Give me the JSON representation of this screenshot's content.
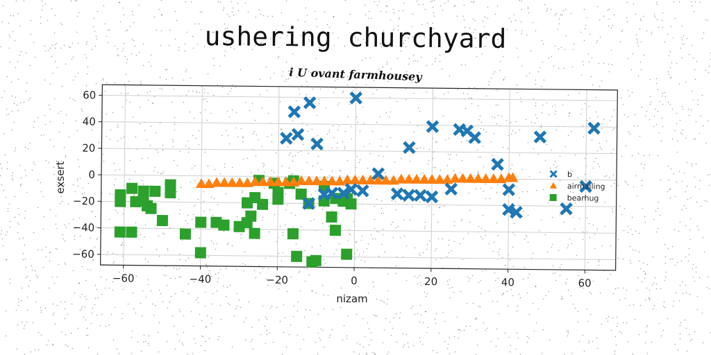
{
  "title": "ushering churchyard",
  "chart_data": {
    "type": "scatter",
    "title": "i U ovant farmhousey",
    "xlabel": "nizam",
    "ylabel": "exsert",
    "xlim": [
      -66,
      68
    ],
    "ylim": [
      -68,
      68
    ],
    "xticks": [
      -60,
      -40,
      -20,
      0,
      20,
      40,
      60
    ],
    "yticks": [
      -60,
      -40,
      -20,
      0,
      20,
      40,
      60
    ],
    "grid": true,
    "legend": "center-right",
    "series": [
      {
        "name": "b",
        "marker": "x",
        "color": "#1f77b4",
        "points": [
          [
            -16,
            49
          ],
          [
            -12,
            56
          ],
          [
            -18,
            29
          ],
          [
            -15,
            32
          ],
          [
            -10,
            25
          ],
          [
            0,
            60
          ],
          [
            -6,
            -12
          ],
          [
            -3,
            -12
          ],
          [
            -8,
            -13
          ],
          [
            -12,
            -20
          ],
          [
            -1,
            -9
          ],
          [
            2,
            -10
          ],
          [
            6,
            3
          ],
          [
            11,
            -12
          ],
          [
            14,
            -13
          ],
          [
            17,
            -13
          ],
          [
            20,
            -14
          ],
          [
            20,
            39
          ],
          [
            27,
            37
          ],
          [
            29,
            36
          ],
          [
            31,
            31
          ],
          [
            14,
            23
          ],
          [
            25,
            -8
          ],
          [
            37,
            11
          ],
          [
            40,
            -8
          ],
          [
            40,
            -23
          ],
          [
            42,
            -25
          ],
          [
            48,
            32
          ],
          [
            55,
            -22
          ],
          [
            62,
            39
          ],
          [
            60,
            -5
          ]
        ]
      },
      {
        "name": "airmailing",
        "marker": "triangle",
        "color": "#ff7f0e",
        "points": [
          [
            -40,
            -6
          ],
          [
            -38,
            -6
          ],
          [
            -36,
            -5
          ],
          [
            -34,
            -5
          ],
          [
            -32,
            -5
          ],
          [
            -30,
            -5
          ],
          [
            -28,
            -5
          ],
          [
            -26,
            -4
          ],
          [
            -24,
            -4
          ],
          [
            -22,
            -4
          ],
          [
            -20,
            -4
          ],
          [
            -18,
            -4
          ],
          [
            -16,
            -4
          ],
          [
            -14,
            -3
          ],
          [
            -12,
            -3
          ],
          [
            -10,
            -3
          ],
          [
            -8,
            -3
          ],
          [
            -6,
            -3
          ],
          [
            -4,
            -3
          ],
          [
            -2,
            -2
          ],
          [
            0,
            -2
          ],
          [
            2,
            -2
          ],
          [
            4,
            -2
          ],
          [
            6,
            -2
          ],
          [
            8,
            -2
          ],
          [
            10,
            -2
          ],
          [
            12,
            -1
          ],
          [
            14,
            -1
          ],
          [
            16,
            -1
          ],
          [
            18,
            -1
          ],
          [
            20,
            -1
          ],
          [
            22,
            -1
          ],
          [
            24,
            -1
          ],
          [
            26,
            0
          ],
          [
            28,
            0
          ],
          [
            30,
            0
          ],
          [
            32,
            0
          ],
          [
            34,
            0
          ],
          [
            36,
            0
          ],
          [
            38,
            0
          ],
          [
            40,
            1
          ],
          [
            41,
            1
          ]
        ]
      },
      {
        "name": "bearhug",
        "marker": "square",
        "color": "#2ca02c",
        "points": [
          [
            -61,
            -15
          ],
          [
            -61,
            -20
          ],
          [
            -61,
            -43
          ],
          [
            -58,
            -43
          ],
          [
            -58,
            -10
          ],
          [
            -57,
            -20
          ],
          [
            -55,
            -12
          ],
          [
            -55,
            -19
          ],
          [
            -54,
            -23
          ],
          [
            -53,
            -25
          ],
          [
            -52,
            -12
          ],
          [
            -50,
            -34
          ],
          [
            -48,
            -7
          ],
          [
            -48,
            -13
          ],
          [
            -44,
            -44
          ],
          [
            -40,
            -35
          ],
          [
            -40,
            -58
          ],
          [
            -36,
            -35
          ],
          [
            -34,
            -37
          ],
          [
            -30,
            -38
          ],
          [
            -28,
            -20
          ],
          [
            -28,
            -35
          ],
          [
            -27,
            -30
          ],
          [
            -26,
            -16
          ],
          [
            -26,
            -43
          ],
          [
            -25,
            -3
          ],
          [
            -24,
            -21
          ],
          [
            -21,
            -5
          ],
          [
            -20,
            -12
          ],
          [
            -20,
            -17
          ],
          [
            -17,
            -5
          ],
          [
            -16,
            -3
          ],
          [
            -16,
            -43
          ],
          [
            -15,
            -60
          ],
          [
            -14,
            -13
          ],
          [
            -12,
            -20
          ],
          [
            -11,
            -64
          ],
          [
            -10,
            -63
          ],
          [
            -8,
            -7
          ],
          [
            -8,
            -18
          ],
          [
            -6,
            -30
          ],
          [
            -5,
            -40
          ],
          [
            -5,
            -16
          ],
          [
            -3,
            -18
          ],
          [
            -2,
            -16
          ],
          [
            -2,
            -58
          ],
          [
            -1,
            -20
          ]
        ]
      }
    ]
  }
}
